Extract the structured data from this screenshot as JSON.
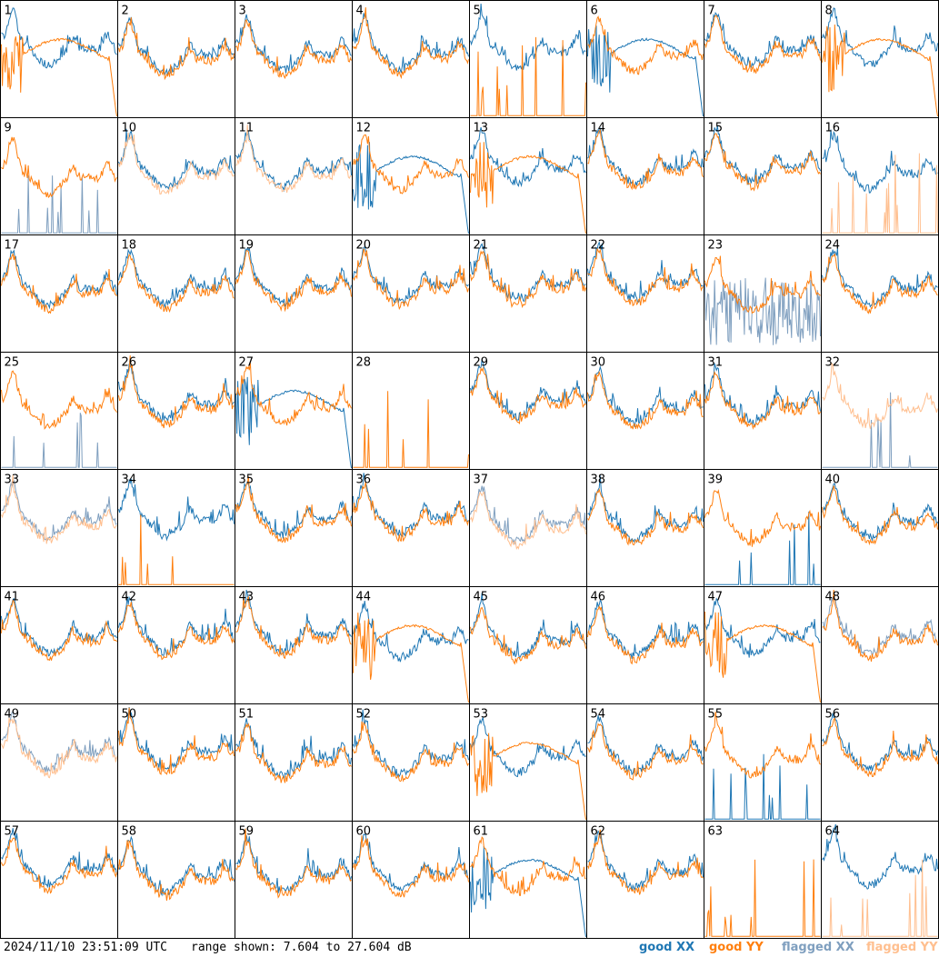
{
  "chart_data": {
    "type": "line",
    "description_grid": "8 x 8 grid of per-antenna spectra",
    "range": {
      "min_db": 7.604,
      "max_db": 27.604
    },
    "series_legend": [
      {
        "name": "good XX",
        "color": "#1f77b4"
      },
      {
        "name": "good YY",
        "color": "#ff7f0e"
      },
      {
        "name": "flagged XX",
        "color": "#7f9fbf"
      },
      {
        "name": "flagged YY",
        "color": "#ffbf8f"
      }
    ],
    "panels": [
      {
        "label": "1",
        "xx": "good",
        "yy": "good",
        "xx_shape": "normal",
        "yy_shape": "rolloff"
      },
      {
        "label": "2",
        "xx": "good",
        "yy": "good",
        "xx_shape": "normal",
        "yy_shape": "normal"
      },
      {
        "label": "3",
        "xx": "good",
        "yy": "good",
        "xx_shape": "normal",
        "yy_shape": "normal"
      },
      {
        "label": "4",
        "xx": "good",
        "yy": "good",
        "xx_shape": "normal",
        "yy_shape": "normal"
      },
      {
        "label": "5",
        "xx": "good",
        "yy": "good",
        "xx_shape": "normal",
        "yy_shape": "spiky"
      },
      {
        "label": "6",
        "xx": "good",
        "yy": "good",
        "xx_shape": "rolloff",
        "yy_shape": "normal"
      },
      {
        "label": "7",
        "xx": "good",
        "yy": "good",
        "xx_shape": "normal",
        "yy_shape": "normal"
      },
      {
        "label": "8",
        "xx": "good",
        "yy": "good",
        "xx_shape": "normal",
        "yy_shape": "rolloff"
      },
      {
        "label": "9",
        "xx": "flagged",
        "yy": "good",
        "xx_shape": "spiky",
        "yy_shape": "normal"
      },
      {
        "label": "10",
        "xx": "good",
        "yy": "flagged",
        "xx_shape": "normal",
        "yy_shape": "normal"
      },
      {
        "label": "11",
        "xx": "good",
        "yy": "flagged",
        "xx_shape": "normal",
        "yy_shape": "normal"
      },
      {
        "label": "12",
        "xx": "good",
        "yy": "good",
        "xx_shape": "rolloff",
        "yy_shape": "normal"
      },
      {
        "label": "13",
        "xx": "good",
        "yy": "good",
        "xx_shape": "normal",
        "yy_shape": "rolloff"
      },
      {
        "label": "14",
        "xx": "good",
        "yy": "good",
        "xx_shape": "normal",
        "yy_shape": "normal"
      },
      {
        "label": "15",
        "xx": "good",
        "yy": "good",
        "xx_shape": "normal",
        "yy_shape": "normal"
      },
      {
        "label": "16",
        "xx": "good",
        "yy": "flagged",
        "xx_shape": "normal",
        "yy_shape": "spiky"
      },
      {
        "label": "17",
        "xx": "good",
        "yy": "good",
        "xx_shape": "normal",
        "yy_shape": "normal"
      },
      {
        "label": "18",
        "xx": "good",
        "yy": "good",
        "xx_shape": "normal",
        "yy_shape": "normal"
      },
      {
        "label": "19",
        "xx": "good",
        "yy": "good",
        "xx_shape": "normal",
        "yy_shape": "normal"
      },
      {
        "label": "20",
        "xx": "good",
        "yy": "good",
        "xx_shape": "normal",
        "yy_shape": "normal"
      },
      {
        "label": "21",
        "xx": "good",
        "yy": "good",
        "xx_shape": "normal",
        "yy_shape": "normal"
      },
      {
        "label": "22",
        "xx": "good",
        "yy": "good",
        "xx_shape": "normal",
        "yy_shape": "normal"
      },
      {
        "label": "23",
        "xx": "flagged",
        "yy": "good",
        "xx_shape": "noisy",
        "yy_shape": "normal"
      },
      {
        "label": "24",
        "xx": "good",
        "yy": "good",
        "xx_shape": "normal",
        "yy_shape": "normal"
      },
      {
        "label": "25",
        "xx": "flagged",
        "yy": "good",
        "xx_shape": "spiky",
        "yy_shape": "normal"
      },
      {
        "label": "26",
        "xx": "good",
        "yy": "good",
        "xx_shape": "normal",
        "yy_shape": "normal"
      },
      {
        "label": "27",
        "xx": "good",
        "yy": "good",
        "xx_shape": "rolloff",
        "yy_shape": "normal"
      },
      {
        "label": "28",
        "xx": "none",
        "yy": "good",
        "xx_shape": "none",
        "yy_shape": "spiky"
      },
      {
        "label": "29",
        "xx": "good",
        "yy": "good",
        "xx_shape": "normal",
        "yy_shape": "normal"
      },
      {
        "label": "30",
        "xx": "good",
        "yy": "good",
        "xx_shape": "normal",
        "yy_shape": "normal"
      },
      {
        "label": "31",
        "xx": "good",
        "yy": "good",
        "xx_shape": "normal",
        "yy_shape": "normal"
      },
      {
        "label": "32",
        "xx": "flagged",
        "yy": "flagged",
        "xx_shape": "spiky",
        "yy_shape": "normal"
      },
      {
        "label": "33",
        "xx": "flagged",
        "yy": "flagged",
        "xx_shape": "normal",
        "yy_shape": "normal"
      },
      {
        "label": "34",
        "xx": "good",
        "yy": "good",
        "xx_shape": "normal",
        "yy_shape": "spiky"
      },
      {
        "label": "35",
        "xx": "good",
        "yy": "good",
        "xx_shape": "normal",
        "yy_shape": "normal"
      },
      {
        "label": "36",
        "xx": "good",
        "yy": "good",
        "xx_shape": "normal",
        "yy_shape": "normal"
      },
      {
        "label": "37",
        "xx": "flagged",
        "yy": "flagged",
        "xx_shape": "normal",
        "yy_shape": "normal"
      },
      {
        "label": "38",
        "xx": "good",
        "yy": "good",
        "xx_shape": "normal",
        "yy_shape": "normal"
      },
      {
        "label": "39",
        "xx": "good",
        "yy": "good",
        "xx_shape": "spiky",
        "yy_shape": "normal"
      },
      {
        "label": "40",
        "xx": "good",
        "yy": "good",
        "xx_shape": "normal",
        "yy_shape": "normal"
      },
      {
        "label": "41",
        "xx": "good",
        "yy": "good",
        "xx_shape": "normal",
        "yy_shape": "normal"
      },
      {
        "label": "42",
        "xx": "good",
        "yy": "good",
        "xx_shape": "normal",
        "yy_shape": "normal"
      },
      {
        "label": "43",
        "xx": "good",
        "yy": "good",
        "xx_shape": "normal",
        "yy_shape": "normal"
      },
      {
        "label": "44",
        "xx": "good",
        "yy": "good",
        "xx_shape": "normal",
        "yy_shape": "rolloff"
      },
      {
        "label": "45",
        "xx": "good",
        "yy": "good",
        "xx_shape": "normal",
        "yy_shape": "normal"
      },
      {
        "label": "46",
        "xx": "good",
        "yy": "good",
        "xx_shape": "normal",
        "yy_shape": "normal"
      },
      {
        "label": "47",
        "xx": "good",
        "yy": "good",
        "xx_shape": "normal",
        "yy_shape": "rolloff"
      },
      {
        "label": "48",
        "xx": "flagged",
        "yy": "good",
        "xx_shape": "normal",
        "yy_shape": "normal"
      },
      {
        "label": "49",
        "xx": "flagged",
        "yy": "flagged",
        "xx_shape": "normal",
        "yy_shape": "normal"
      },
      {
        "label": "50",
        "xx": "good",
        "yy": "good",
        "xx_shape": "normal",
        "yy_shape": "normal"
      },
      {
        "label": "51",
        "xx": "good",
        "yy": "good",
        "xx_shape": "normal",
        "yy_shape": "normal"
      },
      {
        "label": "52",
        "xx": "good",
        "yy": "good",
        "xx_shape": "normal",
        "yy_shape": "normal"
      },
      {
        "label": "53",
        "xx": "good",
        "yy": "good",
        "xx_shape": "normal",
        "yy_shape": "rolloff"
      },
      {
        "label": "54",
        "xx": "good",
        "yy": "good",
        "xx_shape": "normal",
        "yy_shape": "normal"
      },
      {
        "label": "55",
        "xx": "good",
        "yy": "good",
        "xx_shape": "spiky",
        "yy_shape": "normal"
      },
      {
        "label": "56",
        "xx": "good",
        "yy": "good",
        "xx_shape": "normal",
        "yy_shape": "normal"
      },
      {
        "label": "57",
        "xx": "good",
        "yy": "good",
        "xx_shape": "normal",
        "yy_shape": "normal"
      },
      {
        "label": "58",
        "xx": "good",
        "yy": "good",
        "xx_shape": "normal",
        "yy_shape": "normal"
      },
      {
        "label": "59",
        "xx": "good",
        "yy": "good",
        "xx_shape": "normal",
        "yy_shape": "normal"
      },
      {
        "label": "60",
        "xx": "good",
        "yy": "good",
        "xx_shape": "normal",
        "yy_shape": "normal"
      },
      {
        "label": "61",
        "xx": "good",
        "yy": "good",
        "xx_shape": "rolloff",
        "yy_shape": "normal"
      },
      {
        "label": "62",
        "xx": "good",
        "yy": "good",
        "xx_shape": "normal",
        "yy_shape": "normal"
      },
      {
        "label": "63",
        "xx": "none",
        "yy": "good",
        "xx_shape": "none",
        "yy_shape": "spiky"
      },
      {
        "label": "64",
        "xx": "good",
        "yy": "flagged",
        "xx_shape": "normal",
        "yy_shape": "spiky"
      }
    ]
  },
  "footer": {
    "timestamp": "2024/11/10 23:51:09 UTC",
    "range_text": "range shown: 7.604 to 27.604 dB",
    "legend": {
      "good_xx": "good XX",
      "good_yy": "good YY",
      "flagged_xx": "flagged XX",
      "flagged_yy": "flagged YY"
    }
  }
}
